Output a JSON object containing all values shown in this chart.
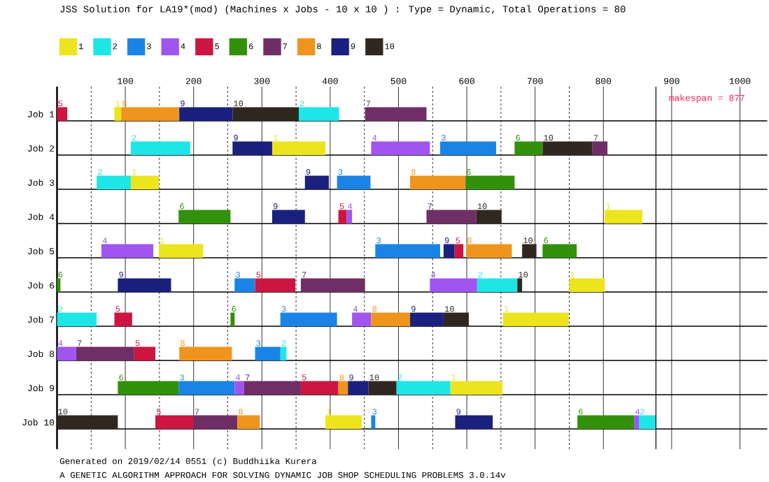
{
  "chart_data": {
    "type": "bar",
    "orientation": "horizontal",
    "title": "JSS Solution for LA19*(mod) (Machines x Jobs - 10 x 10 ) : Type = Dynamic, Total Operations = 80",
    "categories": [
      "Job 1",
      "Job 2",
      "Job 3",
      "Job 4",
      "Job 5",
      "Job 6",
      "Job 7",
      "Job 8",
      "Job 9",
      "Job 10"
    ],
    "series": [
      {
        "name": "1",
        "color": "#ece41c",
        "base": [
          84,
          315,
          108,
          802,
          149,
          750,
          653,
          null,
          576,
          393
        ],
        "values": [
          10,
          78,
          41,
          55,
          65,
          52,
          96,
          null,
          76,
          53
        ]
      },
      {
        "name": "2",
        "color": "#1ee6e6",
        "base": [
          354,
          108,
          58,
          null,
          null,
          615,
          0,
          327,
          497,
          852
        ],
        "values": [
          59,
          87,
          50,
          null,
          null,
          59,
          58,
          9,
          79,
          25
        ]
      },
      {
        "name": "3",
        "color": "#1a84e6",
        "base": [
          null,
          561,
          410,
          null,
          466,
          260,
          327,
          290,
          178,
          460
        ],
        "values": [
          null,
          82,
          49,
          null,
          95,
          30,
          83,
          37,
          82,
          6
        ]
      },
      {
        "name": "4",
        "color": "#a055f0",
        "base": [
          null,
          460,
          null,
          424,
          65,
          546,
          432,
          0,
          260,
          845
        ],
        "values": [
          null,
          86,
          null,
          8,
          76,
          69,
          28,
          28,
          14,
          7
        ]
      },
      {
        "name": "5",
        "color": "#cc1540",
        "base": [
          0,
          null,
          null,
          412,
          582,
          290,
          84,
          113,
          357,
          144
        ],
        "values": [
          15,
          null,
          null,
          12,
          13,
          59,
          26,
          31,
          55,
          56
        ]
      },
      {
        "name": "6",
        "color": "#32900a",
        "base": [
          null,
          670,
          598,
          178,
          711,
          0,
          254,
          null,
          89,
          762
        ],
        "values": [
          null,
          41,
          72,
          76,
          50,
          5,
          6,
          null,
          89,
          83
        ]
      },
      {
        "name": "7",
        "color": "#702e66",
        "base": [
          451,
          784,
          null,
          541,
          null,
          357,
          null,
          28,
          274,
          200
        ],
        "values": [
          90,
          22,
          null,
          73,
          null,
          94,
          null,
          85,
          83,
          64
        ]
      },
      {
        "name": "8",
        "color": "#ef951e",
        "base": [
          94,
          null,
          517,
          null,
          599,
          null,
          460,
          179,
          412,
          264
        ],
        "values": [
          85,
          null,
          81,
          null,
          67,
          null,
          57,
          77,
          14,
          33
        ]
      },
      {
        "name": "9",
        "color": "#1a207e",
        "base": [
          179,
          257,
          363,
          315,
          566,
          89,
          517,
          null,
          426,
          583
        ],
        "values": [
          78,
          58,
          35,
          48,
          16,
          78,
          49,
          null,
          30,
          55
        ]
      },
      {
        "name": "10",
        "color": "#302820",
        "base": [
          257,
          711,
          null,
          614,
          681,
          674,
          566,
          null,
          456,
          0
        ],
        "values": [
          97,
          73,
          null,
          37,
          21,
          7,
          37,
          null,
          41,
          89
        ]
      }
    ],
    "xlim": [
      0,
      1040
    ],
    "xticks": [
      {
        "value": 50,
        "label": null
      },
      100,
      {
        "value": 150,
        "label": null
      },
      200,
      {
        "value": 250,
        "label": null
      },
      300,
      {
        "value": 350,
        "label": null
      },
      400,
      {
        "value": 450,
        "label": null
      },
      500,
      {
        "value": 550,
        "label": null
      },
      600,
      {
        "value": 650,
        "label": null
      },
      700,
      {
        "value": 750,
        "label": null
      },
      800,
      900,
      1000
    ],
    "grid": "x",
    "legend": "top",
    "ref_lines": [
      {
        "axis": "x",
        "value": 877,
        "label": "makespan = 877",
        "color": "#000000"
      }
    ],
    "annotations": [
      "Generated on 2019/02/14 0551 (c) Buddhiika Kurera",
      "A GENETIC ALGORITHM APPROACH FOR SOLVING DYNAMIC JOB SHOP SCHEDULING PROBLEMS 3.0.14v"
    ]
  }
}
